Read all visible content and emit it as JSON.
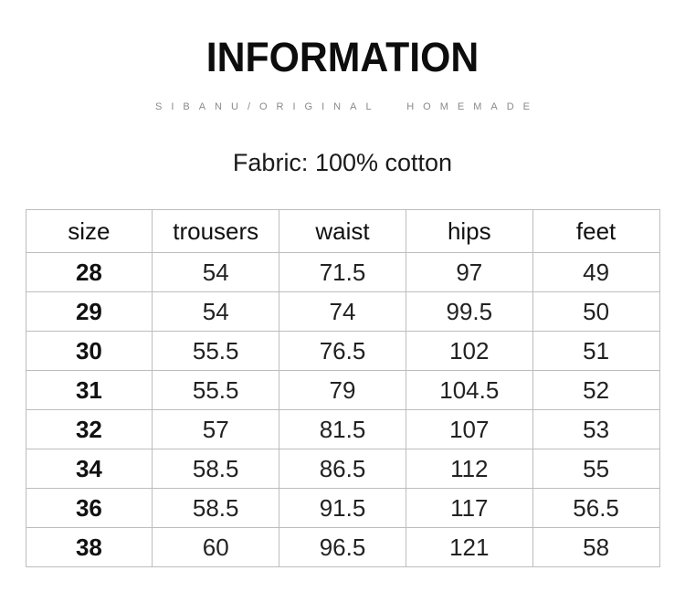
{
  "page": {
    "title": "INFORMATION",
    "subtitle": "SIBANU/ORIGINAL HOMEMADE",
    "fabric_line": "Fabric: 100% cotton"
  },
  "size_table": {
    "columns": [
      "size",
      "trousers",
      "waist",
      "hips",
      "feet"
    ],
    "rows": [
      [
        "28",
        "54",
        "71.5",
        "97",
        "49"
      ],
      [
        "29",
        "54",
        "74",
        "99.5",
        "50"
      ],
      [
        "30",
        "55.5",
        "76.5",
        "102",
        "51"
      ],
      [
        "31",
        "55.5",
        "79",
        "104.5",
        "52"
      ],
      [
        "32",
        "57",
        "81.5",
        "107",
        "53"
      ],
      [
        "34",
        "58.5",
        "86.5",
        "112",
        "55"
      ],
      [
        "36",
        "58.5",
        "91.5",
        "117",
        "56.5"
      ],
      [
        "38",
        "60",
        "96.5",
        "121",
        "58"
      ]
    ]
  },
  "colors": {
    "title_text": "#0d0d0d",
    "subtitle_text": "#8a8a8a",
    "body_text": "#222222",
    "table_border": "#bdbdbd",
    "background": "#ffffff"
  }
}
